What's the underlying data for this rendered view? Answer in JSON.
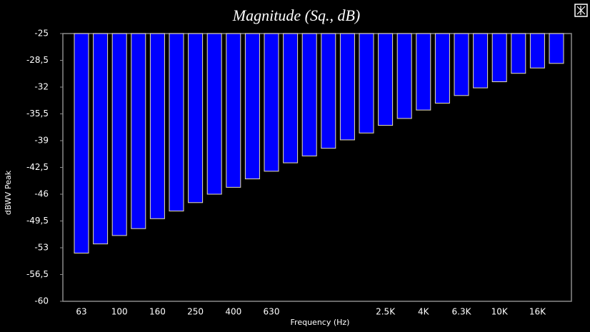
{
  "chart_data": {
    "type": "bar",
    "title": "Magnitude (Sq., dB)",
    "x_label": "Frequency (Hz)",
    "y_label": "dBWV Peak",
    "categories": [
      "63",
      null,
      "100",
      null,
      "160",
      null,
      "250",
      null,
      "400",
      null,
      "630",
      null,
      null,
      null,
      null,
      null,
      "2.5K",
      null,
      "4K",
      null,
      "6.3K",
      null,
      "10K",
      null,
      "16K",
      null
    ],
    "values": [
      -53.7,
      -52.5,
      -51.4,
      -50.5,
      -49.2,
      -48.2,
      -47.1,
      -46.0,
      -45.1,
      -44.0,
      -43.0,
      -41.9,
      -41.0,
      -40.0,
      -38.9,
      -38.0,
      -37.0,
      -36.1,
      -35.0,
      -34.1,
      -33.1,
      -32.1,
      -31.3,
      -30.2,
      -29.5,
      -28.9
    ],
    "color": "#0000ff",
    "ylim": [
      -60,
      -25
    ],
    "yticks": [
      -25,
      {
        "value": -28.5,
        "label": "-28,5"
      },
      -32,
      {
        "value": -35.5,
        "label": "-35,5"
      },
      -39,
      {
        "value": -42.5,
        "label": "-42,5"
      },
      -46,
      {
        "value": -49.5,
        "label": "-49,5"
      },
      -53,
      {
        "value": -56.5,
        "label": "-56,5"
      },
      -60
    ],
    "grid": false
  }
}
